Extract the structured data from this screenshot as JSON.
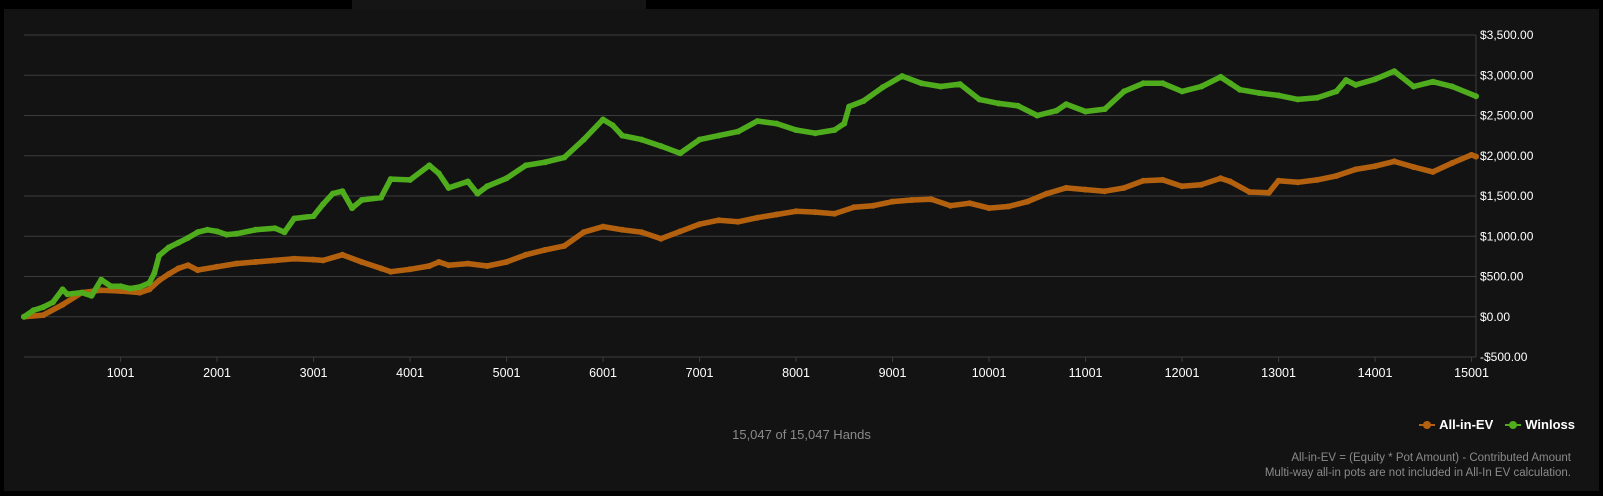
{
  "colors": {
    "background": "#131313",
    "grid": "#3c3c3c",
    "all_in_ev": "#b4610f",
    "winloss": "#4eac1d",
    "axis_text": "#ffffff",
    "muted_text": "#8a8a8a"
  },
  "hands_label": "15,047 of 15,047 Hands",
  "legend": [
    {
      "label": "All-in-EV",
      "color": "#b4610f"
    },
    {
      "label": "Winloss",
      "color": "#4eac1d"
    }
  ],
  "footnote": {
    "line1": "All-in-EV = (Equity * Pot Amount) - Contributed Amount",
    "line2": "Multi-way all-in pots are not included in All-In EV calculation."
  },
  "chart_data": {
    "type": "line",
    "grid": true,
    "legend_position": "bottom-right",
    "xlim": [
      0,
      15047
    ],
    "ylim": [
      -500,
      3500
    ],
    "x_ticks": [
      1001,
      2001,
      3001,
      4001,
      5001,
      6001,
      7001,
      8001,
      9001,
      10001,
      11001,
      12001,
      13001,
      14001,
      15001
    ],
    "x_tick_labels": [
      "1001",
      "2001",
      "3001",
      "4001",
      "5001",
      "6001",
      "7001",
      "8001",
      "9001",
      "10001",
      "11001",
      "12001",
      "13001",
      "14001",
      "15001"
    ],
    "y_ticks": [
      3500,
      3000,
      2500,
      2000,
      1500,
      1000,
      500,
      0,
      -500
    ],
    "y_tick_labels": [
      "$3,500.00",
      "$3,000.00",
      "$2,500.00",
      "$2,000.00",
      "$1,500.00",
      "$1,000.00",
      "$500.00",
      "$0.00",
      "-$500.00"
    ],
    "series": [
      {
        "name": "All-in-EV",
        "color": "#b4610f",
        "points": [
          [
            0,
            0
          ],
          [
            200,
            20
          ],
          [
            400,
            150
          ],
          [
            600,
            300
          ],
          [
            800,
            330
          ],
          [
            1000,
            320
          ],
          [
            1200,
            300
          ],
          [
            1300,
            340
          ],
          [
            1400,
            450
          ],
          [
            1500,
            530
          ],
          [
            1600,
            600
          ],
          [
            1700,
            640
          ],
          [
            1800,
            580
          ],
          [
            2000,
            620
          ],
          [
            2200,
            660
          ],
          [
            2400,
            680
          ],
          [
            2600,
            700
          ],
          [
            2800,
            720
          ],
          [
            3000,
            710
          ],
          [
            3100,
            700
          ],
          [
            3300,
            770
          ],
          [
            3500,
            680
          ],
          [
            3700,
            600
          ],
          [
            3800,
            560
          ],
          [
            4000,
            590
          ],
          [
            4200,
            630
          ],
          [
            4300,
            680
          ],
          [
            4400,
            640
          ],
          [
            4600,
            660
          ],
          [
            4800,
            630
          ],
          [
            5000,
            680
          ],
          [
            5200,
            770
          ],
          [
            5400,
            830
          ],
          [
            5600,
            880
          ],
          [
            5800,
            1050
          ],
          [
            6000,
            1120
          ],
          [
            6200,
            1080
          ],
          [
            6400,
            1050
          ],
          [
            6600,
            970
          ],
          [
            6800,
            1060
          ],
          [
            7000,
            1150
          ],
          [
            7200,
            1200
          ],
          [
            7400,
            1180
          ],
          [
            7600,
            1230
          ],
          [
            7800,
            1270
          ],
          [
            8000,
            1310
          ],
          [
            8200,
            1300
          ],
          [
            8400,
            1280
          ],
          [
            8600,
            1360
          ],
          [
            8800,
            1380
          ],
          [
            9000,
            1430
          ],
          [
            9200,
            1450
          ],
          [
            9400,
            1460
          ],
          [
            9600,
            1380
          ],
          [
            9800,
            1410
          ],
          [
            10000,
            1350
          ],
          [
            10200,
            1370
          ],
          [
            10400,
            1430
          ],
          [
            10600,
            1530
          ],
          [
            10800,
            1600
          ],
          [
            11000,
            1580
          ],
          [
            11200,
            1560
          ],
          [
            11400,
            1600
          ],
          [
            11600,
            1690
          ],
          [
            11800,
            1700
          ],
          [
            12000,
            1620
          ],
          [
            12200,
            1640
          ],
          [
            12400,
            1720
          ],
          [
            12500,
            1680
          ],
          [
            12700,
            1550
          ],
          [
            12900,
            1540
          ],
          [
            13000,
            1690
          ],
          [
            13200,
            1670
          ],
          [
            13400,
            1700
          ],
          [
            13600,
            1750
          ],
          [
            13800,
            1830
          ],
          [
            14000,
            1870
          ],
          [
            14200,
            1930
          ],
          [
            14400,
            1860
          ],
          [
            14600,
            1800
          ],
          [
            14800,
            1910
          ],
          [
            15000,
            2010
          ],
          [
            15047,
            1990
          ]
        ]
      },
      {
        "name": "Winloss",
        "color": "#4eac1d",
        "points": [
          [
            0,
            0
          ],
          [
            100,
            80
          ],
          [
            200,
            120
          ],
          [
            300,
            180
          ],
          [
            400,
            340
          ],
          [
            450,
            280
          ],
          [
            600,
            300
          ],
          [
            700,
            260
          ],
          [
            800,
            460
          ],
          [
            900,
            380
          ],
          [
            1000,
            380
          ],
          [
            1100,
            350
          ],
          [
            1200,
            370
          ],
          [
            1300,
            420
          ],
          [
            1350,
            540
          ],
          [
            1400,
            760
          ],
          [
            1500,
            860
          ],
          [
            1600,
            920
          ],
          [
            1700,
            980
          ],
          [
            1800,
            1050
          ],
          [
            1900,
            1080
          ],
          [
            2000,
            1060
          ],
          [
            2100,
            1020
          ],
          [
            2200,
            1030
          ],
          [
            2400,
            1080
          ],
          [
            2600,
            1100
          ],
          [
            2700,
            1050
          ],
          [
            2800,
            1220
          ],
          [
            3000,
            1250
          ],
          [
            3100,
            1400
          ],
          [
            3200,
            1530
          ],
          [
            3300,
            1560
          ],
          [
            3400,
            1350
          ],
          [
            3500,
            1450
          ],
          [
            3700,
            1480
          ],
          [
            3800,
            1710
          ],
          [
            4000,
            1700
          ],
          [
            4200,
            1880
          ],
          [
            4300,
            1780
          ],
          [
            4400,
            1600
          ],
          [
            4600,
            1680
          ],
          [
            4700,
            1530
          ],
          [
            4800,
            1620
          ],
          [
            5000,
            1720
          ],
          [
            5200,
            1880
          ],
          [
            5400,
            1920
          ],
          [
            5600,
            1980
          ],
          [
            5800,
            2200
          ],
          [
            6000,
            2450
          ],
          [
            6100,
            2380
          ],
          [
            6200,
            2250
          ],
          [
            6400,
            2200
          ],
          [
            6600,
            2120
          ],
          [
            6800,
            2030
          ],
          [
            7000,
            2200
          ],
          [
            7200,
            2250
          ],
          [
            7400,
            2300
          ],
          [
            7600,
            2430
          ],
          [
            7800,
            2400
          ],
          [
            8000,
            2320
          ],
          [
            8200,
            2280
          ],
          [
            8400,
            2320
          ],
          [
            8500,
            2400
          ],
          [
            8550,
            2610
          ],
          [
            8700,
            2680
          ],
          [
            8900,
            2850
          ],
          [
            9100,
            2990
          ],
          [
            9300,
            2900
          ],
          [
            9500,
            2860
          ],
          [
            9700,
            2890
          ],
          [
            9900,
            2700
          ],
          [
            10100,
            2650
          ],
          [
            10300,
            2620
          ],
          [
            10500,
            2500
          ],
          [
            10700,
            2560
          ],
          [
            10800,
            2640
          ],
          [
            11000,
            2550
          ],
          [
            11200,
            2580
          ],
          [
            11400,
            2800
          ],
          [
            11600,
            2900
          ],
          [
            11800,
            2900
          ],
          [
            12000,
            2800
          ],
          [
            12200,
            2860
          ],
          [
            12400,
            2980
          ],
          [
            12500,
            2900
          ],
          [
            12600,
            2820
          ],
          [
            12800,
            2780
          ],
          [
            13000,
            2750
          ],
          [
            13200,
            2700
          ],
          [
            13400,
            2720
          ],
          [
            13600,
            2800
          ],
          [
            13700,
            2940
          ],
          [
            13800,
            2880
          ],
          [
            14000,
            2950
          ],
          [
            14200,
            3050
          ],
          [
            14400,
            2860
          ],
          [
            14600,
            2920
          ],
          [
            14800,
            2860
          ],
          [
            15047,
            2740
          ]
        ]
      }
    ]
  }
}
